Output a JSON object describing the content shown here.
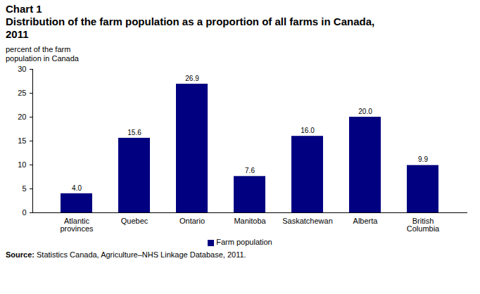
{
  "chart_data": {
    "type": "bar",
    "title": "Chart 1",
    "subtitle": "Distribution of the farm population as a proportion of all farms in Canada, 2011",
    "y_label": "percent of the farm population in Canada",
    "categories": [
      "Atlantic provinces",
      "Quebec",
      "Ontario",
      "Manitoba",
      "Saskatchewan",
      "Alberta",
      "British Columbia"
    ],
    "series": [
      {
        "name": "Farm population",
        "color": "#000080",
        "values": [
          4.0,
          15.6,
          26.9,
          7.6,
          16.0,
          20.0,
          9.9
        ],
        "value_labels": [
          "4.0",
          "15.6",
          "26.9",
          "7.6",
          "16.0",
          "20.0",
          "9.9"
        ]
      }
    ],
    "ylim": [
      0,
      30
    ],
    "yticks": [
      0,
      5,
      10,
      15,
      20,
      25,
      30
    ],
    "grid": false,
    "data_labels": true,
    "legend": "bottom",
    "caption": "Source: Statistics Canada, Agriculture–NHS Linkage Database, 2011."
  }
}
